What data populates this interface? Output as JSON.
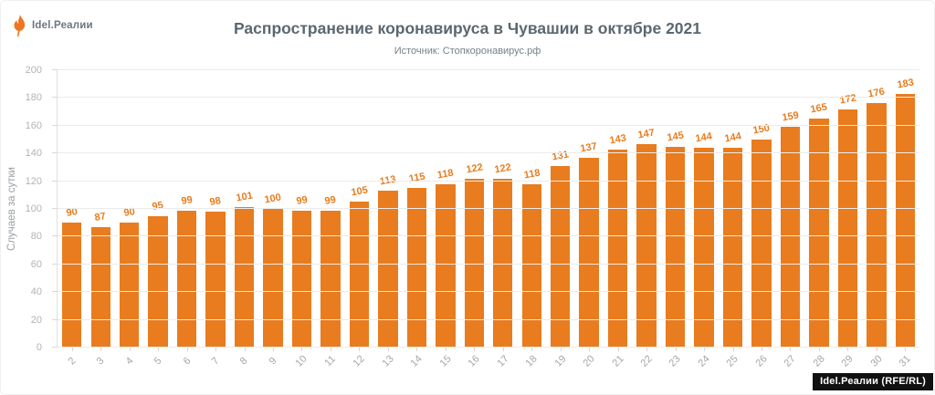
{
  "branding": {
    "logo_text": "Idel.Реалии",
    "credit_badge": "Idel.Реалии (RFE/RL)"
  },
  "colors": {
    "bar": "#E87C1E",
    "value_label": "#E87C1E",
    "title": "#5B6770",
    "subtitle": "#75818A",
    "axis_text": "#B3B3B3",
    "gridline": "#EBEBEB",
    "badge_bg": "#111111",
    "badge_text": "#FFFFFF",
    "logo_orange": "#EE7522"
  },
  "chart_data": {
    "type": "bar",
    "title": "Распространение коронавируса в Чувашии в октябре 2021",
    "subtitle": "Источник: Стопкоронавирус.рф",
    "xlabel": "",
    "ylabel": "Случаев за сутки",
    "categories": [
      "2",
      "3",
      "4",
      "5",
      "6",
      "7",
      "8",
      "9",
      "10",
      "11",
      "12",
      "13",
      "14",
      "15",
      "16",
      "17",
      "18",
      "19",
      "20",
      "21",
      "22",
      "23",
      "24",
      "25",
      "26",
      "27",
      "28",
      "29",
      "30",
      "31"
    ],
    "values": [
      90,
      87,
      90,
      95,
      99,
      98,
      101,
      100,
      99,
      99,
      105,
      113,
      115,
      118,
      122,
      122,
      118,
      131,
      137,
      143,
      147,
      145,
      144,
      144,
      150,
      159,
      165,
      172,
      176,
      183
    ],
    "ylim": [
      0,
      200
    ],
    "ytick_step": 20,
    "grid": true,
    "legend": false,
    "bar_value_labels": true,
    "x_tick_rotation_deg": -45,
    "value_label_rotation_deg": -10
  }
}
